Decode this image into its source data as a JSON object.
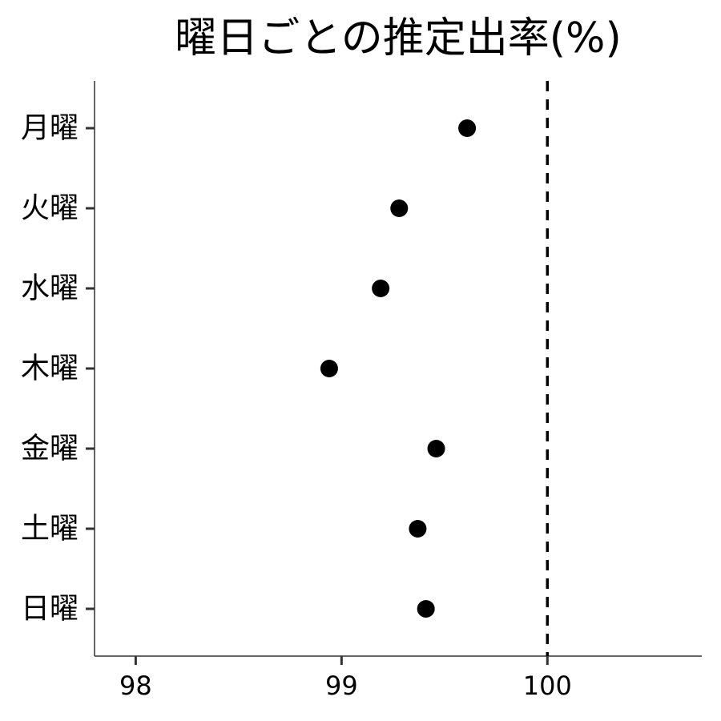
{
  "chart_data": {
    "type": "scatter",
    "title": "曜日ごとの推定出率(%)",
    "xlabel": "",
    "ylabel": "",
    "categories": [
      "月曜",
      "火曜",
      "水曜",
      "木曜",
      "金曜",
      "土曜",
      "日曜"
    ],
    "values": [
      99.61,
      99.28,
      99.19,
      98.94,
      99.46,
      99.37,
      99.41
    ],
    "xlim": [
      97.8,
      100.75
    ],
    "xticks": [
      "98",
      "99",
      "100"
    ],
    "reference_line": {
      "x": 100,
      "style": "dashed"
    },
    "grid": false,
    "legend": "none",
    "point_color": "#000000"
  }
}
